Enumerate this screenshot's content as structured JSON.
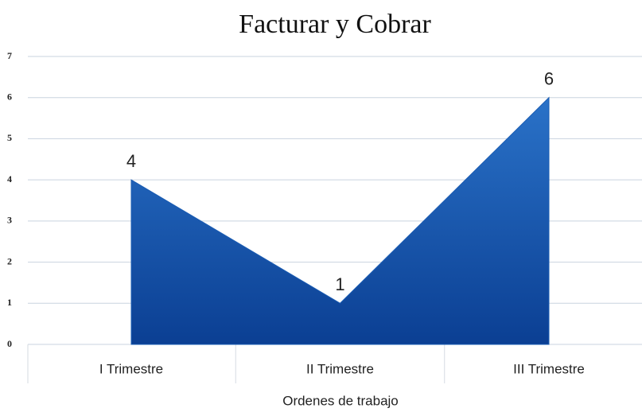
{
  "chart_data": {
    "type": "area",
    "title": "Facturar y Cobrar",
    "categories": [
      "I Trimestre",
      "II Trimestre",
      "III Trimestre"
    ],
    "values": [
      4,
      1,
      6
    ],
    "color": "#1a5cb3",
    "xlabel": "Ordenes de trabajo",
    "ylim": [
      0,
      7
    ],
    "yticks": [
      0,
      1,
      2,
      3,
      4,
      5,
      6,
      7
    ],
    "grid": true
  }
}
